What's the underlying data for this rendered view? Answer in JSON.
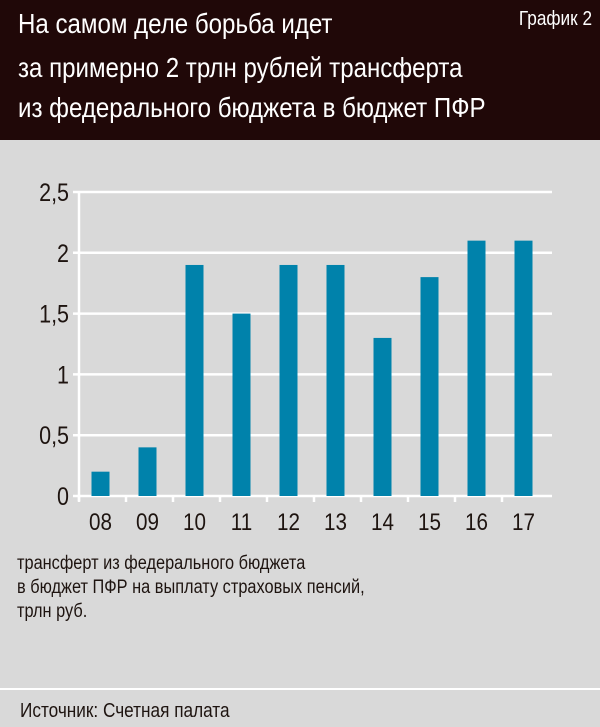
{
  "header": {
    "title_lines": [
      "На самом деле борьба идет",
      "за примерно 2 трлн рублей трансферта",
      "из федерального бюджета в бюджет ПФР"
    ],
    "tag": "График 2"
  },
  "chart_data": {
    "type": "bar",
    "categories": [
      "08",
      "09",
      "10",
      "11",
      "12",
      "13",
      "14",
      "15",
      "16",
      "17"
    ],
    "values": [
      0.2,
      0.4,
      1.9,
      1.5,
      1.9,
      1.9,
      1.3,
      1.8,
      2.1,
      2.1
    ],
    "yticks": [
      "0",
      "0,5",
      "1",
      "1,5",
      "2",
      "2,5"
    ],
    "ylim": [
      0,
      2.5
    ],
    "grid": true,
    "bar_color": "#0082ab",
    "caption_lines": [
      "трансферт из федерального бюджета",
      "в бюджет ПФР на выплату страховых пенсий,",
      "трлн руб."
    ]
  },
  "footer": {
    "source": "Источник: Счетная палата"
  }
}
